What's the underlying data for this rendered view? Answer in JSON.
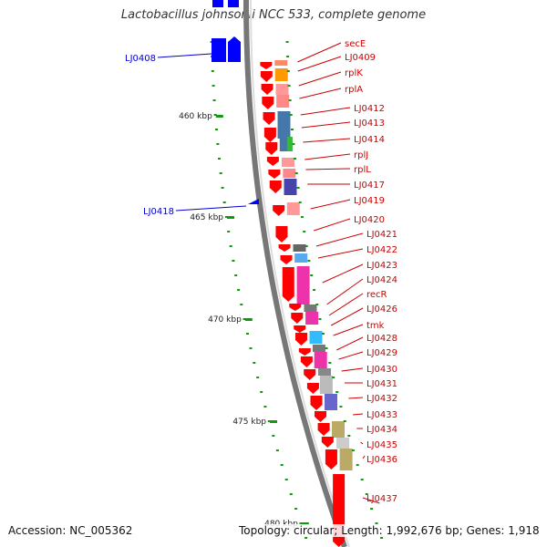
{
  "title": "Lactobacillus johnsonii NCC 533, complete genome",
  "footer": {
    "accession": "Accession: NC_005362",
    "summary": "Topology: circular; Length: 1,992,676 bp; Genes: 1,918"
  },
  "kbp_labels": [
    "460 kbp",
    "465 kbp",
    "470 kbp",
    "475 kbp",
    "480 kbp"
  ],
  "left_gene_labels": [
    "LJ0408",
    "LJ0418"
  ],
  "right_gene_labels": [
    "secE",
    "LJ0409",
    "rplK",
    "rplA",
    "LJ0412",
    "LJ0413",
    "LJ0414",
    "rplJ",
    "rplL",
    "LJ0417",
    "LJ0419",
    "LJ0420",
    "LJ0421",
    "LJ0422",
    "LJ0423",
    "LJ0424",
    "recR",
    "LJ0426",
    "tmk",
    "LJ0428",
    "LJ0429",
    "LJ0430",
    "LJ0431",
    "LJ0432",
    "LJ0433",
    "LJ0434",
    "LJ0435",
    "LJ0436",
    "LJ0437"
  ],
  "colors": {
    "forward_gene": "#ff0000",
    "reverse_gene": "#0000ff",
    "backbone": "#888888",
    "tick": "#119911",
    "right_label": "#cc0000",
    "left_label": "#0000cc"
  }
}
